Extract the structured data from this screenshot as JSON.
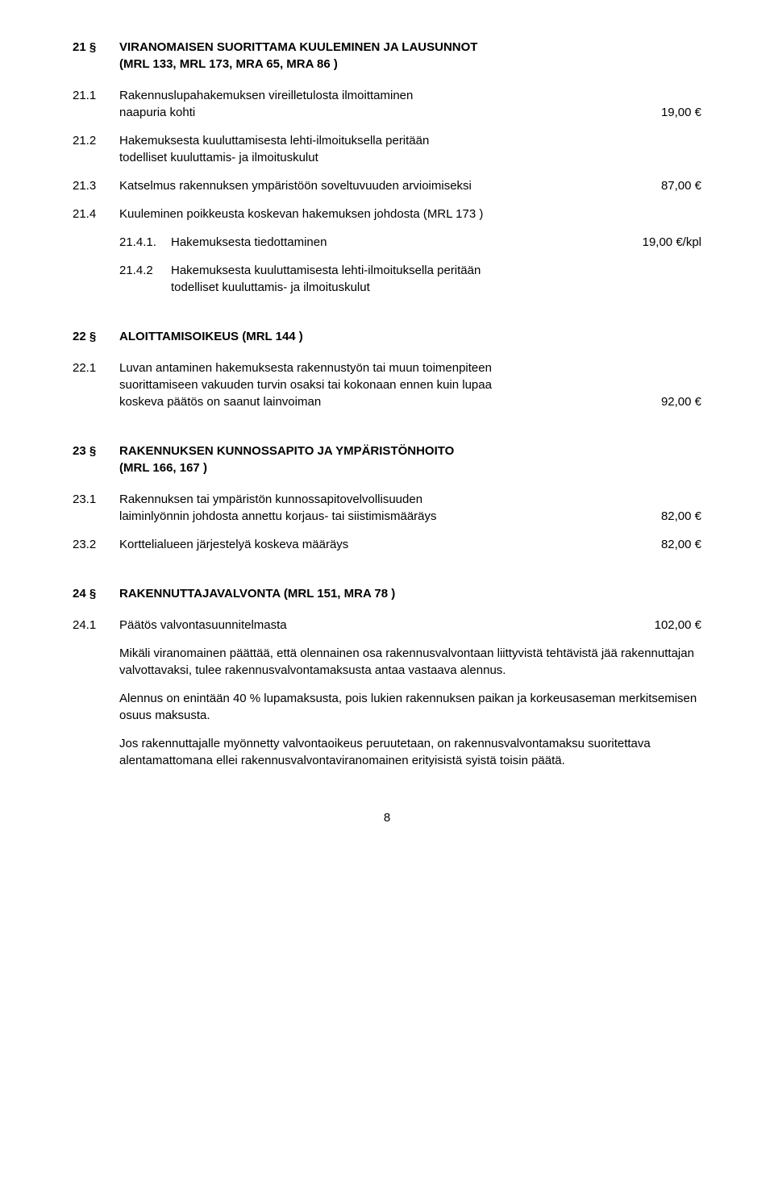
{
  "s21": {
    "num": "21 §",
    "title_l1": "VIRANOMAISEN SUORITTAMA KUULEMINEN JA LAUSUNNOT",
    "title_l2": "(MRL 133, MRL 173, MRA 65, MRA 86 )",
    "i1": {
      "num": "21.1",
      "txt_l1": "Rakennuslupahakemuksen vireilletulosta ilmoittaminen",
      "txt_l2": "naapuria kohti",
      "price": "19,00 €"
    },
    "i2": {
      "num": "21.2",
      "txt_l1": "Hakemuksesta kuuluttamisesta lehti-ilmoituksella peritään",
      "txt_l2": "todelliset kuuluttamis- ja ilmoituskulut"
    },
    "i3": {
      "num": "21.3",
      "txt": "Katselmus rakennuksen ympäristöön soveltuvuuden arvioimiseksi",
      "price": "87,00 €"
    },
    "i4": {
      "num": "21.4",
      "txt": "Kuuleminen poikkeusta koskevan hakemuksen johdosta (MRL 173 )"
    },
    "i41": {
      "num": "21.4.1.",
      "txt": "Hakemuksesta tiedottaminen",
      "price": "19,00 €/kpl"
    },
    "i42": {
      "num": "21.4.2",
      "txt_l1": "Hakemuksesta kuuluttamisesta lehti-ilmoituksella peritään",
      "txt_l2": "todelliset kuuluttamis- ja ilmoituskulut"
    }
  },
  "s22": {
    "num": "22 §",
    "title": "ALOITTAMISOIKEUS (MRL 144 )",
    "i1": {
      "num": "22.1",
      "txt_l1": "Luvan antaminen hakemuksesta rakennustyön tai muun toimenpiteen",
      "txt_l2": "suorittamiseen vakuuden turvin osaksi tai kokonaan ennen kuin lupaa",
      "txt_l3": "koskeva päätös on saanut lainvoiman",
      "price": "92,00 €"
    }
  },
  "s23": {
    "num": "23 §",
    "title_l1": "RAKENNUKSEN  KUNNOSSAPITO  JA  YMPÄRISTÖNHOITO",
    "title_l2": "(MRL 166, 167 )",
    "i1": {
      "num": "23.1",
      "txt_l1": "Rakennuksen tai ympäristön kunnossapitovelvollisuuden",
      "txt_l2": "laiminlyönnin johdosta annettu korjaus- tai siistimismääräys",
      "price": "82,00 €"
    },
    "i2": {
      "num": "23.2",
      "txt": "Korttelialueen järjestelyä koskeva määräys",
      "price": "82,00 €"
    }
  },
  "s24": {
    "num": "24 §",
    "title": "RAKENNUTTAJAVALVONTA  (MRL 151,  MRA 78 )",
    "i1": {
      "num": "24.1",
      "txt": "Päätös valvontasuunnitelmasta",
      "price": "102,00 €"
    },
    "p1": "Mikäli viranomainen päättää, että olennainen osa rakennusvalvontaan liittyvistä tehtävistä jää rakennuttajan valvottavaksi, tulee rakennus­valvontamaksusta antaa vastaava alennus.",
    "p2": "Alennus on enintään 40 % lupamaksusta, pois lukien rakennuksen paikan ja korkeusaseman merkitsemisen osuus maksusta.",
    "p3": "Jos rakennuttajalle myönnetty valvontaoikeus peruutetaan, on rakennus­valvontamaksu suoritettava alentamattomana ellei rakennusvalvonta­viranomainen erityisistä syistä toisin päätä."
  },
  "page": "8"
}
